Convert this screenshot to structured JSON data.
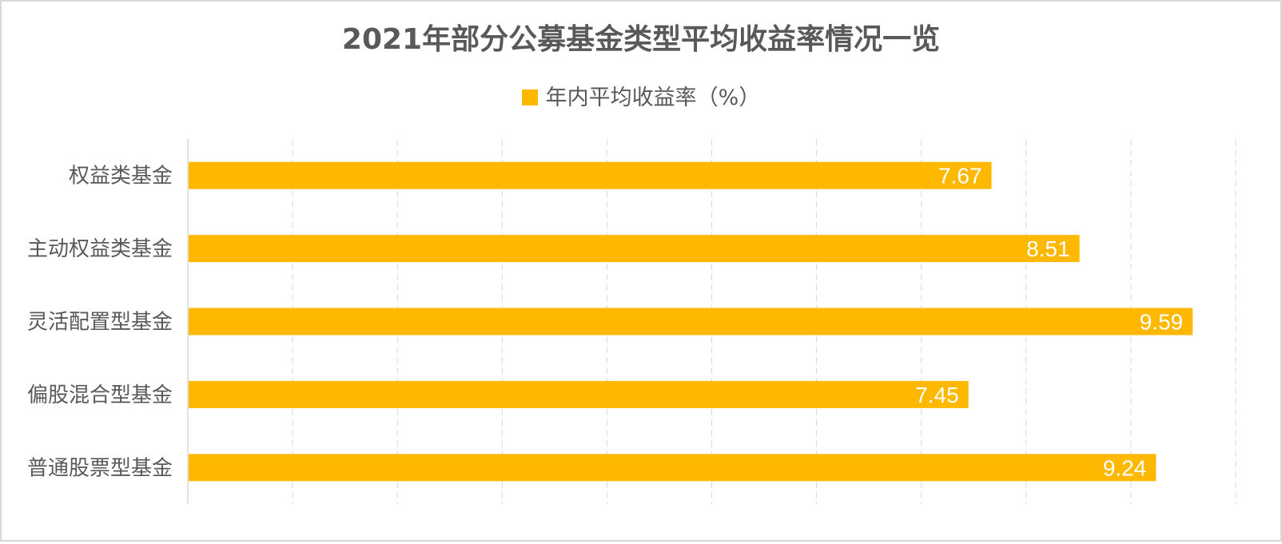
{
  "chart_data": {
    "type": "bar",
    "orientation": "horizontal",
    "title": "2021年部分公募基金类型平均收益率情况一览",
    "categories": [
      "权益类基金",
      "主动权益类基金",
      "灵活配置型基金",
      "偏股混合型基金",
      "普通股票型基金"
    ],
    "series": [
      {
        "name": "年内平均收益率（%）",
        "values": [
          7.67,
          8.51,
          9.59,
          7.45,
          9.24
        ],
        "color": "#FFB800"
      }
    ],
    "data_labels": [
      "7.67",
      "8.51",
      "9.59",
      "7.45",
      "9.24"
    ],
    "xlim": [
      0,
      10
    ],
    "grid": "vertical dashed",
    "axis_tick_labels_visible": false,
    "legend_position": "top"
  }
}
